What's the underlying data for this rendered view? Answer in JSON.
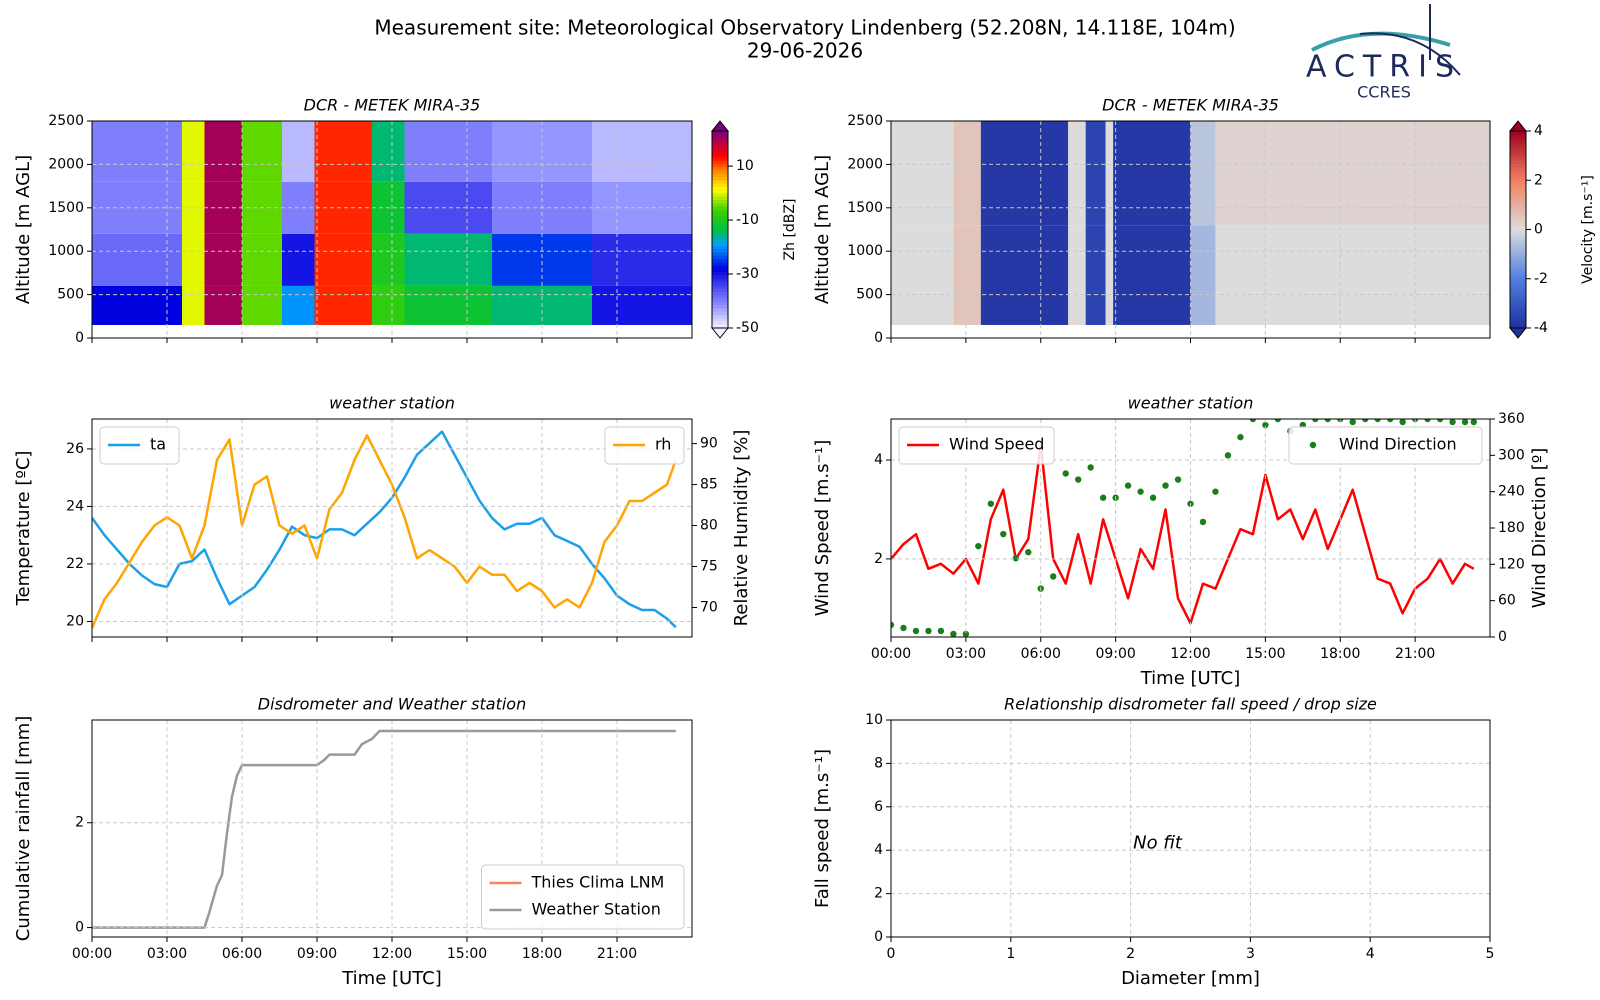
{
  "header": {
    "title": "Measurement site: Meteorological Observatory Lindenberg (52.208N, 14.118E, 104m)",
    "date": "29-06-2026",
    "logo": "ACTRIS",
    "logo_sub": "CCRES"
  },
  "chart_data": [
    {
      "type": "heatmap",
      "title": "DCR - METEK MIRA-35",
      "y_label": "Altitude [m AGL]",
      "xlim": [
        0,
        24
      ],
      "xticks": [
        0,
        3,
        6,
        9,
        12,
        15,
        18,
        21
      ],
      "xticklabels": false,
      "ylim": [
        0,
        2500
      ],
      "yticks": [
        0,
        500,
        1000,
        1500,
        2000,
        2500
      ],
      "grid": true,
      "x": [
        0,
        3.6,
        4.5,
        6.0,
        7.6,
        8.9,
        11.2,
        12.5,
        16,
        20,
        24
      ],
      "y": [
        150,
        600,
        1200,
        1800,
        2500
      ],
      "z": [
        [
          -28,
          0,
          20,
          -5,
          -20,
          12,
          -8,
          -12,
          -15,
          -30
        ],
        [
          -38,
          0,
          20,
          -5,
          -30,
          12,
          -10,
          -15,
          -25,
          -32
        ],
        [
          -40,
          0,
          20,
          -5,
          -40,
          12,
          -12,
          -35,
          -40,
          -42
        ],
        [
          -40,
          0,
          20,
          -5,
          -45,
          12,
          -15,
          -40,
          -42,
          -45
        ]
      ],
      "colormap": "jet-white",
      "colorbar": {
        "label": "Zh [dBZ]",
        "clim": [
          -50,
          23
        ],
        "ticks": [
          -50,
          -30,
          -10,
          10
        ]
      }
    },
    {
      "type": "heatmap",
      "title": "DCR - METEK MIRA-35",
      "y_label": "Altitude [m AGL]",
      "xlim": [
        0,
        24
      ],
      "xticks": [
        0,
        3,
        6,
        9,
        12,
        15,
        18,
        21
      ],
      "xticklabels": false,
      "ylim": [
        0,
        2500
      ],
      "yticks": [
        0,
        500,
        1000,
        1500,
        2000,
        2500
      ],
      "grid": true,
      "x": [
        0,
        2.5,
        3.6,
        7.1,
        7.8,
        8.6,
        8.9,
        12.0,
        13.0,
        24
      ],
      "y": [
        150,
        1300,
        2500
      ],
      "z": [
        [
          0,
          0.5,
          -3.8,
          0,
          -3.5,
          0,
          -3.8,
          -0.8,
          0
        ],
        [
          0,
          0.5,
          -3.8,
          0,
          -3.5,
          0,
          -3.8,
          -0.5,
          0.2
        ]
      ],
      "colormap": "RdBu_r",
      "colorbar": {
        "label": "Velocity [m.s⁻¹]",
        "clim": [
          -4,
          4
        ],
        "ticks": [
          -4,
          -2,
          0,
          2,
          4
        ]
      }
    },
    {
      "type": "line",
      "title": "weather station",
      "y_label": "Temperature [ºC]",
      "y2_label": "Relative Humidity [%]",
      "xlim": [
        0,
        24
      ],
      "xticks": [
        0,
        3,
        6,
        9,
        12,
        15,
        18,
        21
      ],
      "xticklabels": false,
      "ylim": [
        19.46,
        27.04
      ],
      "yticks": [
        20,
        22,
        24,
        26
      ],
      "y2lim": [
        66.4,
        93.0
      ],
      "y2ticks": [
        70,
        75,
        80,
        85,
        90
      ],
      "grid": true,
      "x": [
        0,
        0.5,
        1,
        1.5,
        2,
        2.5,
        3,
        3.5,
        4,
        4.5,
        5,
        5.5,
        6,
        6.5,
        7,
        7.5,
        8,
        8.5,
        9,
        9.5,
        10,
        10.5,
        11,
        11.5,
        12,
        12.5,
        13,
        13.5,
        14,
        14.5,
        15,
        15.5,
        16,
        16.5,
        17,
        17.5,
        18,
        18.5,
        19,
        19.5,
        20,
        20.5,
        21,
        21.5,
        22,
        22.5,
        23,
        23.35
      ],
      "series": [
        {
          "name": "ta",
          "color": "#1a9fea",
          "legend": "upper left",
          "values": [
            23.6,
            23.0,
            22.5,
            22.0,
            21.6,
            21.3,
            21.2,
            22.0,
            22.1,
            22.5,
            21.5,
            20.6,
            20.9,
            21.2,
            21.8,
            22.5,
            23.3,
            23.0,
            22.9,
            23.2,
            23.2,
            23.0,
            23.4,
            23.8,
            24.3,
            25.0,
            25.8,
            26.2,
            26.6,
            25.8,
            25.0,
            24.2,
            23.6,
            23.2,
            23.4,
            23.4,
            23.6,
            23.0,
            22.8,
            22.6,
            22.0,
            21.5,
            20.9,
            20.6,
            20.4,
            20.4,
            20.1,
            19.8
          ]
        },
        {
          "name": "rh",
          "color": "#ffa500",
          "axis": "y2",
          "legend": "upper right",
          "values": [
            67.5,
            71,
            73,
            75.5,
            78,
            80,
            81,
            80,
            76,
            80,
            88,
            90.5,
            80,
            85,
            86,
            80,
            79,
            80,
            76,
            82,
            84,
            88,
            91,
            88,
            85,
            81,
            76,
            77,
            76,
            75,
            73,
            75,
            74,
            74,
            72,
            73,
            72,
            70,
            71,
            70,
            73,
            78,
            80,
            83,
            83,
            84,
            85,
            88
          ]
        }
      ]
    },
    {
      "type": "line",
      "title": "weather station",
      "x_label": "Time [UTC]",
      "y_label": "Wind Speed [m.s⁻¹]",
      "y2_label": "Wind Direction [º]",
      "xlim": [
        0,
        24
      ],
      "xticks": [
        {
          "value": 0,
          "label": "00:00"
        },
        {
          "value": 3,
          "label": "03:00"
        },
        {
          "value": 6,
          "label": "06:00"
        },
        {
          "value": 9,
          "label": "09:00"
        },
        {
          "value": 12,
          "label": "12:00"
        },
        {
          "value": 15,
          "label": "15:00"
        },
        {
          "value": 18,
          "label": "18:00"
        },
        {
          "value": 21,
          "label": "21:00"
        }
      ],
      "ylim": [
        0.42,
        4.83
      ],
      "yticks": [
        2,
        4
      ],
      "y2lim": [
        0,
        360
      ],
      "y2ticks": [
        0,
        60,
        120,
        180,
        240,
        300,
        360
      ],
      "grid": true,
      "x": [
        0,
        0.5,
        1,
        1.5,
        2,
        2.5,
        3,
        3.5,
        4,
        4.5,
        5,
        5.5,
        6,
        6.5,
        7,
        7.5,
        8,
        8.5,
        9,
        9.5,
        10,
        10.5,
        11,
        11.5,
        12,
        12.5,
        13,
        13.5,
        14,
        14.5,
        15,
        15.5,
        16,
        16.5,
        17,
        17.5,
        18,
        18.5,
        19,
        19.5,
        20,
        20.5,
        21,
        21.5,
        22,
        22.5,
        23,
        23.35
      ],
      "series": [
        {
          "name": "Wind Speed",
          "color": "#ff0000",
          "legend": "upper left",
          "values": [
            2.0,
            2.3,
            2.5,
            1.8,
            1.9,
            1.7,
            2.0,
            1.5,
            2.8,
            3.4,
            2.0,
            2.4,
            4.3,
            2.0,
            1.5,
            2.5,
            1.5,
            2.8,
            2.0,
            1.2,
            2.2,
            1.8,
            3.0,
            1.2,
            0.7,
            1.5,
            1.4,
            2.0,
            2.6,
            2.5,
            3.7,
            2.8,
            3.0,
            2.4,
            3.0,
            2.2,
            2.8,
            3.4,
            2.5,
            1.6,
            1.5,
            0.9,
            1.4,
            1.6,
            2.0,
            1.5,
            1.9,
            1.8
          ]
        },
        {
          "name": "Wind Direction",
          "color": "#1a7f1a",
          "axis": "y2",
          "kind": "scatter",
          "legend": "upper right",
          "values": [
            20,
            15,
            10,
            10,
            10,
            5,
            5,
            150,
            220,
            170,
            130,
            140,
            80,
            100,
            270,
            260,
            280,
            230,
            230,
            250,
            240,
            230,
            250,
            260,
            220,
            190,
            240,
            300,
            330,
            360,
            350,
            360,
            340,
            350,
            360,
            360,
            360,
            355,
            360,
            360,
            360,
            355,
            360,
            360,
            360,
            355,
            355,
            355
          ]
        }
      ]
    },
    {
      "type": "line",
      "title": "Disdrometer and Weather station",
      "x_label": "Time [UTC]",
      "y_label": "Cumulative rainfall [mm]",
      "xlim": [
        0,
        24
      ],
      "xticks": [
        {
          "value": 0,
          "label": "00:00"
        },
        {
          "value": 3,
          "label": "03:00"
        },
        {
          "value": 6,
          "label": "06:00"
        },
        {
          "value": 9,
          "label": "09:00"
        },
        {
          "value": 12,
          "label": "12:00"
        },
        {
          "value": 15,
          "label": "15:00"
        },
        {
          "value": 18,
          "label": "18:00"
        },
        {
          "value": 21,
          "label": "21:00"
        }
      ],
      "ylim": [
        -0.18,
        3.96
      ],
      "yticks": [
        0,
        2
      ],
      "grid": true,
      "legend": "lower right",
      "series": [
        {
          "name": "Thies Clima LNM",
          "color": "#f4865f",
          "x": [
            0,
            4.5,
            4.7,
            5.0,
            5.2,
            5.4,
            5.6,
            5.8,
            6.0,
            9.0,
            9.3,
            9.5,
            10.5,
            10.8,
            11.2,
            11.5,
            23.35
          ],
          "values": [
            null,
            null,
            null,
            null,
            null,
            null,
            null,
            null,
            null,
            null,
            null,
            null,
            null,
            null,
            null,
            null,
            null
          ]
        },
        {
          "name": "Weather Station",
          "color": "#999999",
          "x": [
            0,
            4.5,
            4.7,
            5.0,
            5.2,
            5.4,
            5.6,
            5.8,
            6.0,
            9.0,
            9.3,
            9.5,
            10.5,
            10.8,
            11.2,
            11.5,
            23.35
          ],
          "values": [
            0,
            0,
            0.3,
            0.8,
            1.0,
            1.8,
            2.5,
            2.9,
            3.1,
            3.1,
            3.2,
            3.3,
            3.3,
            3.5,
            3.6,
            3.75,
            3.75
          ]
        }
      ]
    },
    {
      "type": "scatter",
      "title": "Relationship disdrometer fall speed / drop size",
      "x_label": "Diameter [mm]",
      "y_label": "Fall speed [m.s⁻¹]",
      "xlim": [
        0,
        5
      ],
      "xticks": [
        0,
        1,
        2,
        3,
        4,
        5
      ],
      "ylim": [
        0,
        10
      ],
      "yticks": [
        0,
        2,
        4,
        6,
        8,
        10
      ],
      "grid": true,
      "annotation": "No fit",
      "series": []
    }
  ]
}
